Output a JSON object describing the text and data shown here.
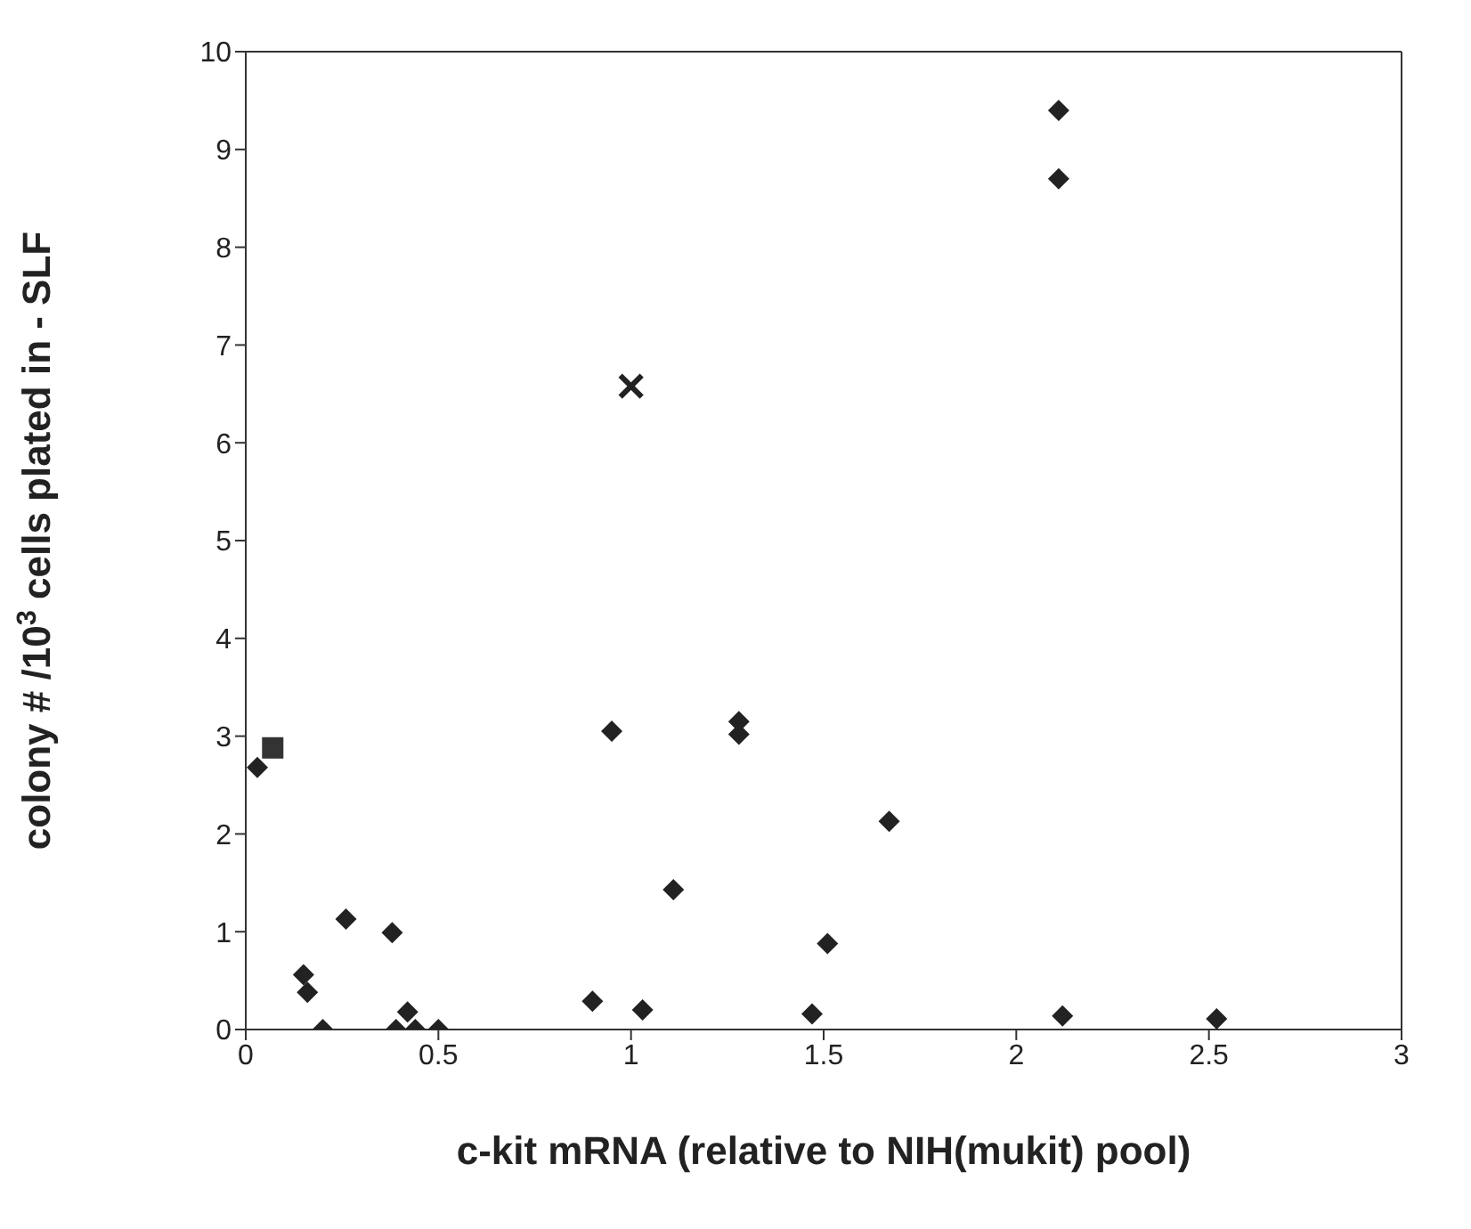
{
  "chart_data": {
    "type": "scatter",
    "xlabel": "c-kit mRNA  (relative to NIH(mukit) pool)",
    "ylabel": "colony # /10$^{3}$ cells plated in - SLF",
    "xlim": [
      0,
      3
    ],
    "xticks": [
      0,
      0.5,
      1,
      1.5,
      2,
      2.5,
      3
    ],
    "ylim": [
      0,
      10
    ],
    "yticks": [
      0,
      1,
      2,
      3,
      4,
      5,
      6,
      7,
      8,
      9,
      10
    ],
    "series": [
      {
        "color": "#222222",
        "marker": "diamond",
        "x": [
          0.03,
          0.15,
          0.16,
          0.26,
          0.38,
          0.2,
          0.39,
          0.42,
          0.44,
          0.5,
          0.9,
          0.95,
          1.03,
          1.11,
          1.28,
          1.28,
          1.51,
          1.47,
          1.67,
          2.12,
          2.52,
          2.11,
          2.11
        ],
        "values": [
          2.68,
          0.56,
          0.38,
          1.13,
          0.99,
          0,
          0,
          0.18,
          0,
          0,
          0.29,
          3.05,
          0.2,
          1.43,
          3.15,
          3.02,
          0.88,
          0.16,
          2.13,
          0.14,
          0.11,
          9.4,
          8.7
        ]
      },
      {
        "color": "#333333",
        "marker": "square",
        "x": [
          0.07
        ],
        "values": [
          2.88
        ]
      },
      {
        "color": "#222222",
        "marker": "cross",
        "x": [
          1.0
        ],
        "values": [
          6.58
        ]
      }
    ]
  }
}
